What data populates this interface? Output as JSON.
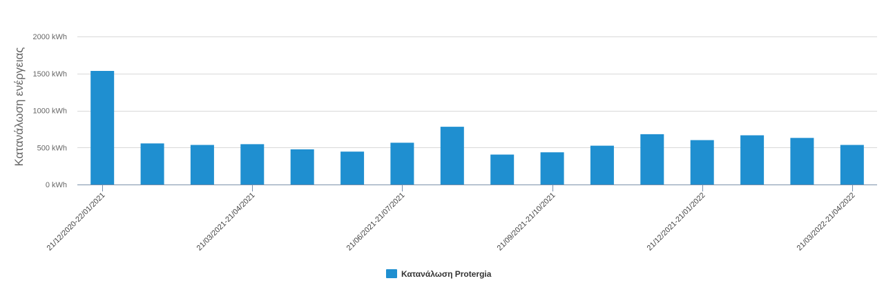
{
  "chart_data": {
    "type": "bar",
    "ylabel": "Κατανάλωση ενέργειας",
    "xlabel": "",
    "ylim": [
      0,
      2000
    ],
    "yticks": [
      "0 kWh",
      "500 kWh",
      "1000 kWh",
      "1500 kWh",
      "2000 kWh"
    ],
    "categories": [
      "21/12/2020-22/01/2021",
      "",
      "",
      "21/03/2021-21/04/2021",
      "",
      "",
      "21/06/2021-21/07/2021",
      "",
      "",
      "21/09/2021-21/10/2021",
      "",
      "",
      "21/12/2021-21/01/2022",
      "",
      "",
      "21/03/2022-21/04/2022"
    ],
    "labeled_category_indices": [
      0,
      3,
      6,
      9,
      12,
      15
    ],
    "series": [
      {
        "name": "Κατανάλωση Protergia",
        "color": "#1f8fd0",
        "values": [
          1535,
          555,
          535,
          545,
          475,
          445,
          565,
          780,
          405,
          435,
          525,
          680,
          600,
          665,
          630,
          535
        ]
      }
    ],
    "grid": true,
    "legend_position": "bottom-center",
    "gridline_color": "#d8d8d8",
    "axis_color": "#7a8fa8"
  }
}
